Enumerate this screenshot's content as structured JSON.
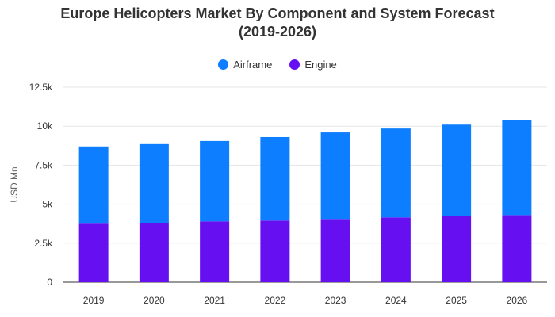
{
  "chart_data": {
    "type": "bar",
    "stacked": true,
    "title_line1": "Europe Helicopters Market By Component and System Forecast",
    "title_line2": "(2019-2026)",
    "xlabel": "",
    "ylabel": "USD Mn",
    "categories": [
      "2019",
      "2020",
      "2021",
      "2022",
      "2023",
      "2024",
      "2025",
      "2026"
    ],
    "series": [
      {
        "name": "Engine",
        "color": "#6610f2",
        "values": [
          3750,
          3800,
          3900,
          3950,
          4050,
          4150,
          4250,
          4300
        ]
      },
      {
        "name": "Airframe",
        "color": "#0d7eff",
        "values": [
          4950,
          5050,
          5150,
          5350,
          5550,
          5700,
          5850,
          6100
        ]
      }
    ],
    "legend": [
      {
        "name": "Airframe",
        "color": "#0d7eff"
      },
      {
        "name": "Engine",
        "color": "#6610f2"
      }
    ],
    "legend_position": "top",
    "ylim": [
      0,
      12500
    ],
    "yticks": [
      {
        "value": 0,
        "label": "0"
      },
      {
        "value": 2500,
        "label": "2.5k"
      },
      {
        "value": 5000,
        "label": "5k"
      },
      {
        "value": 7500,
        "label": "7.5k"
      },
      {
        "value": 10000,
        "label": "10k"
      },
      {
        "value": 12500,
        "label": "12.5k"
      }
    ],
    "grid": true
  }
}
